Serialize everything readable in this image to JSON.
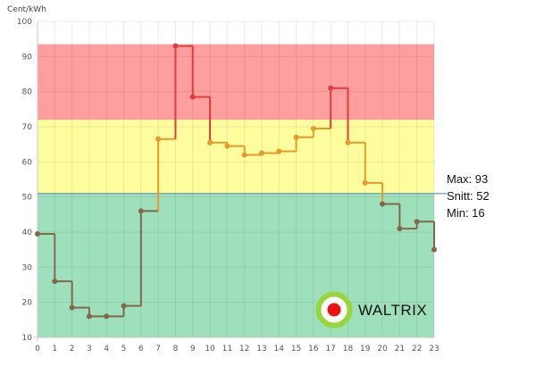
{
  "chart_data": {
    "type": "line",
    "step": true,
    "ylabel": "Cent/kWh",
    "ylim": [
      10,
      100
    ],
    "yticks": [
      10,
      20,
      30,
      40,
      50,
      60,
      70,
      80,
      90,
      100
    ],
    "x": [
      0,
      1,
      2,
      3,
      4,
      5,
      6,
      7,
      8,
      9,
      10,
      11,
      12,
      13,
      14,
      15,
      16,
      17,
      18,
      19,
      20,
      21,
      22,
      23
    ],
    "values": [
      39.5,
      26,
      18.5,
      16,
      16,
      19,
      46,
      66.5,
      93,
      78.5,
      65.5,
      64.5,
      62,
      62.5,
      63,
      67,
      69.5,
      81,
      65.5,
      54,
      48,
      41,
      43,
      35
    ],
    "grid": true,
    "bands": [
      {
        "from": 10,
        "to": 51,
        "color": "#9fe0bc"
      },
      {
        "from": 51,
        "to": 72,
        "color": "#fdfd9e"
      },
      {
        "from": 72,
        "to": 93.5,
        "color": "#ff9e9e"
      }
    ],
    "reference_line": 51,
    "colors": {
      "low": "#806848",
      "mid": "#e69a2c",
      "high": "#e03d3d",
      "reference": "#6f9ab5"
    }
  },
  "stats": {
    "max": "Max: 93",
    "avg": "Snitt: 52",
    "min": "Min: 16"
  },
  "logo": {
    "text": "WALTRIX",
    "ring_color": "#98d63b",
    "dot_color": "#ee1111"
  }
}
